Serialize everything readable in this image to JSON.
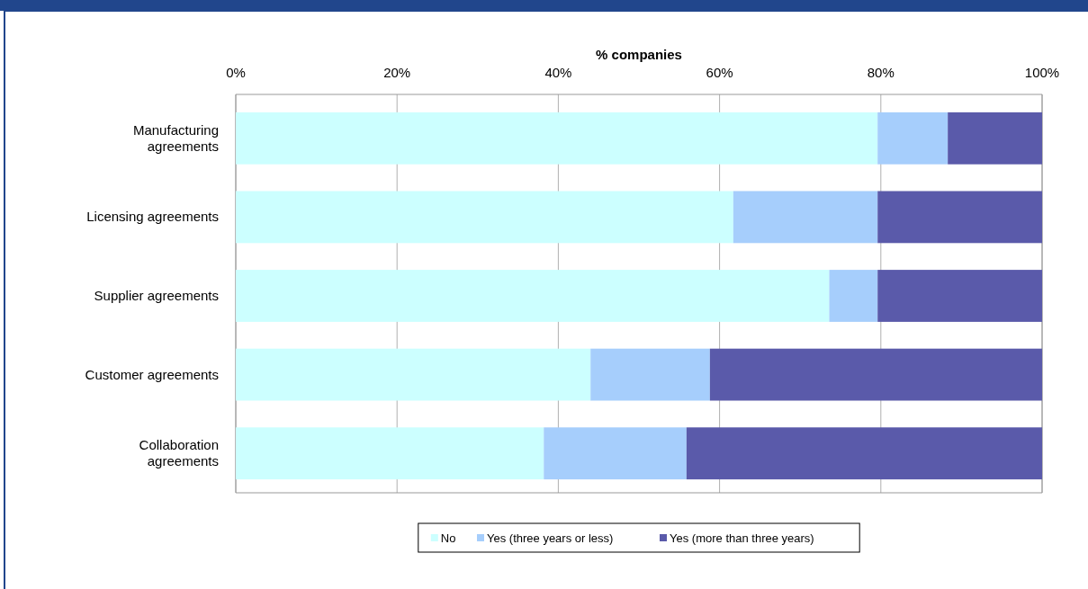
{
  "chart_data": {
    "type": "bar",
    "orientation": "horizontal",
    "stacked": true,
    "xlabel": "% companies",
    "categories": [
      "Manufacturing agreements",
      "Licensing agreements",
      "Supplier agreements",
      "Customer agreements",
      "Collaboration agreements"
    ],
    "series": [
      {
        "name": "No",
        "color": "#ccffff",
        "values": [
          79.6,
          61.7,
          73.6,
          44.0,
          38.2
        ]
      },
      {
        "name": "Yes (three years or less)",
        "color": "#a6cefc",
        "values": [
          8.7,
          17.9,
          6.0,
          14.8,
          17.7
        ]
      },
      {
        "name": "Yes (more than three years)",
        "color": "#5a5aaa",
        "values": [
          11.7,
          20.4,
          20.4,
          41.2,
          44.1
        ]
      }
    ],
    "xlim": [
      0,
      100
    ],
    "xticks": [
      {
        "value": 0,
        "label": "0%"
      },
      {
        "value": 20,
        "label": "20%"
      },
      {
        "value": 40,
        "label": "40%"
      },
      {
        "value": 60,
        "label": "60%"
      },
      {
        "value": 80,
        "label": "80%"
      },
      {
        "value": 100,
        "label": "100%"
      }
    ],
    "grid": "x",
    "legend": "bottom"
  }
}
